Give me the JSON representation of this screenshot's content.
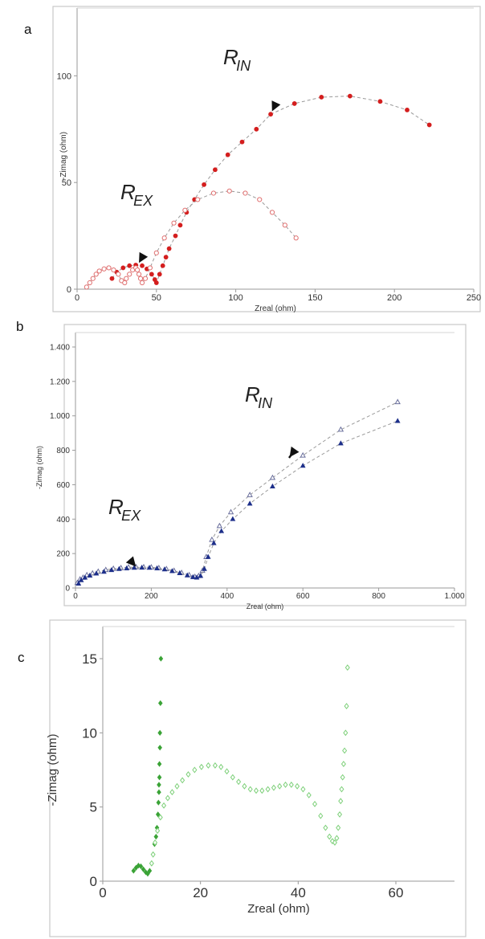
{
  "chart_data": [
    {
      "panel": "a",
      "type": "scatter",
      "xlabel": "Zreal (ohm)",
      "ylabel": "-Zimag (ohm)",
      "xlim": [
        0,
        250
      ],
      "ylim": [
        0,
        125
      ],
      "xticks": [
        0,
        50,
        100,
        150,
        200,
        250
      ],
      "yticks": [
        0,
        50,
        100
      ],
      "annotations": [
        {
          "main": "R",
          "sub": "EX",
          "target": [
            38,
            11
          ]
        },
        {
          "main": "R",
          "sub": "IN",
          "target": [
            122,
            82
          ]
        }
      ],
      "series": [
        {
          "marker": "filled-circle",
          "color": "#d41e1e",
          "fit_line": true,
          "x": [
            22,
            25,
            29,
            33,
            37,
            41,
            44,
            47,
            49,
            50,
            52,
            54,
            56,
            58,
            62,
            65,
            69,
            74,
            80,
            87,
            95,
            104,
            113,
            122,
            137,
            154,
            172,
            191,
            208,
            222
          ],
          "y": [
            5,
            8,
            10,
            11,
            11.3,
            11,
            9.5,
            7,
            4.5,
            3,
            7,
            11,
            15,
            19,
            25,
            30,
            36,
            42,
            49,
            56,
            63,
            69,
            75,
            82,
            87,
            90,
            90.5,
            88,
            84,
            77
          ]
        },
        {
          "marker": "open-circle",
          "color": "#e07070",
          "fit_line": true,
          "x": [
            6,
            8,
            10,
            12,
            14,
            17,
            20,
            23,
            26,
            28,
            30,
            31,
            33,
            35,
            37,
            38,
            39,
            40,
            41,
            43,
            46,
            50,
            55,
            61,
            68,
            76,
            86,
            96,
            106,
            115,
            123,
            131,
            138
          ],
          "y": [
            1,
            3,
            5,
            7,
            8.5,
            9.5,
            10,
            9,
            7,
            4,
            3,
            5,
            7,
            9,
            10,
            9,
            7,
            5,
            3,
            5,
            10,
            17,
            24,
            31,
            37,
            42,
            45,
            46,
            45,
            42,
            36,
            30,
            24
          ]
        }
      ]
    },
    {
      "panel": "b",
      "type": "scatter",
      "xlabel": "Zreal (ohm)",
      "ylabel": "-Zimag (ohm)",
      "xlim": [
        0,
        1000
      ],
      "ylim": [
        0,
        1400
      ],
      "xticks": [
        0,
        200,
        400,
        600,
        800,
        1000
      ],
      "xticklabels": [
        "0",
        "200",
        "400",
        "600",
        "800",
        "1.000"
      ],
      "yticks": [
        0,
        200,
        400,
        600,
        800,
        1000,
        1200,
        1400
      ],
      "yticklabels": [
        "0",
        "200",
        "400",
        "600",
        "800",
        "1.000",
        "1.200",
        "1.400"
      ],
      "annotations": [
        {
          "main": "R",
          "sub": "EX",
          "target": [
            165,
            110
          ]
        },
        {
          "main": "R",
          "sub": "IN",
          "target": [
            560,
            745
          ]
        }
      ],
      "series": [
        {
          "marker": "open-triangle",
          "color": "#6a6f9c",
          "fit_line": true,
          "x": [
            5,
            12,
            20,
            30,
            45,
            60,
            80,
            100,
            120,
            140,
            160,
            180,
            200,
            220,
            240,
            260,
            280,
            300,
            315,
            325,
            335,
            345,
            360,
            380,
            410,
            460,
            520,
            600,
            700,
            850
          ],
          "y": [
            30,
            50,
            60,
            75,
            85,
            95,
            105,
            112,
            116,
            120,
            121,
            121,
            120,
            116,
            110,
            100,
            88,
            75,
            65,
            70,
            100,
            180,
            280,
            360,
            440,
            540,
            640,
            770,
            920,
            1080
          ]
        },
        {
          "marker": "filled-triangle",
          "color": "#1d2f8a",
          "fit_line": true,
          "x": [
            8,
            15,
            25,
            38,
            55,
            75,
            95,
            115,
            135,
            155,
            175,
            195,
            215,
            235,
            255,
            275,
            295,
            310,
            320,
            330,
            340,
            350,
            365,
            385,
            415,
            460,
            520,
            600,
            700,
            850
          ],
          "y": [
            25,
            45,
            60,
            72,
            84,
            94,
            104,
            110,
            114,
            117,
            118,
            117,
            114,
            108,
            98,
            86,
            73,
            63,
            60,
            70,
            110,
            180,
            260,
            330,
            400,
            490,
            590,
            710,
            840,
            970
          ]
        }
      ]
    },
    {
      "panel": "c",
      "type": "scatter",
      "xlabel": "Zreal (ohm)",
      "ylabel": "-Zimag (ohm)",
      "xlim": [
        0,
        72
      ],
      "ylim": [
        0,
        15
      ],
      "xticks": [
        0,
        20,
        40,
        60
      ],
      "yticks": [
        0,
        5,
        10,
        15
      ],
      "series": [
        {
          "marker": "filled-diamond",
          "color": "#3aa336",
          "x": [
            6.3,
            6.8,
            7.3,
            7.8,
            8.3,
            8.8,
            9.2,
            9.6,
            10.0,
            10.3,
            10.6,
            10.9,
            11.1,
            11.3,
            11.4,
            11.5,
            11.5,
            11.6,
            11.6,
            11.7,
            11.7,
            11.8,
            11.9
          ],
          "y": [
            0.7,
            0.9,
            1.05,
            1.0,
            0.8,
            0.6,
            0.5,
            0.7,
            1.2,
            1.8,
            2.5,
            3.0,
            3.6,
            4.5,
            5.3,
            6.0,
            6.5,
            7.0,
            7.9,
            9.0,
            10.0,
            12.0,
            15.0
          ]
        },
        {
          "marker": "open-diamond",
          "color": "#7ed07a",
          "x": [
            10.0,
            10.3,
            10.7,
            11.2,
            11.8,
            12.5,
            13.3,
            14.2,
            15.2,
            16.3,
            17.5,
            18.8,
            20.2,
            21.6,
            23.0,
            24.2,
            25.4,
            26.6,
            27.8,
            29.0,
            30.2,
            31.4,
            32.6,
            33.8,
            35.0,
            36.2,
            37.4,
            38.6,
            39.8,
            41.0,
            42.2,
            43.4,
            44.6,
            45.6,
            46.4,
            47.0,
            47.5,
            47.9,
            48.2,
            48.5,
            48.7,
            48.9,
            49.1,
            49.3,
            49.5,
            49.7,
            49.9,
            50.1
          ],
          "y": [
            1.2,
            1.8,
            2.6,
            3.4,
            4.3,
            5.1,
            5.6,
            6.0,
            6.4,
            6.8,
            7.2,
            7.5,
            7.7,
            7.8,
            7.8,
            7.7,
            7.4,
            7.0,
            6.7,
            6.4,
            6.2,
            6.1,
            6.1,
            6.2,
            6.3,
            6.4,
            6.5,
            6.5,
            6.4,
            6.2,
            5.8,
            5.2,
            4.4,
            3.6,
            3.0,
            2.7,
            2.6,
            2.9,
            3.6,
            4.5,
            5.4,
            6.2,
            7.0,
            7.9,
            8.8,
            10.0,
            11.8,
            14.4
          ]
        }
      ]
    }
  ]
}
